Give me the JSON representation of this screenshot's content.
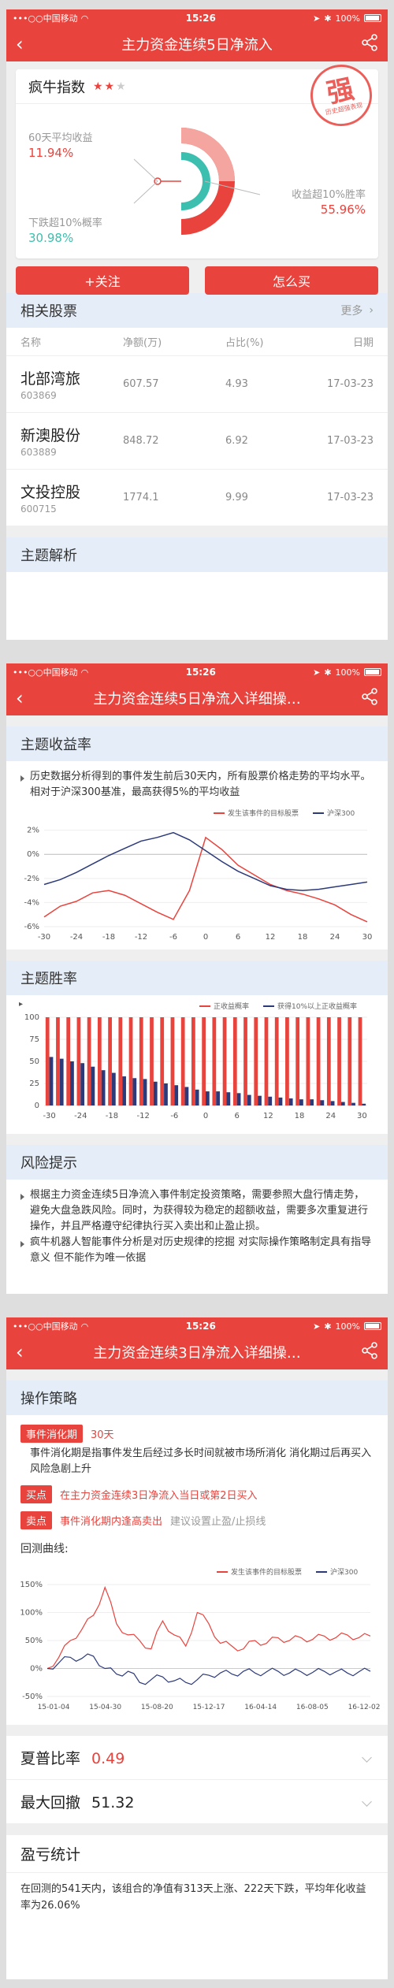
{
  "status_bar": {
    "carrier": "•••○○中国移动",
    "time": "15:26",
    "battery": "100%"
  },
  "frames": [
    {
      "nav_title": "主力资金连续5日净流入"
    },
    {
      "nav_title": "主力资金连续5日净流入详细操…"
    },
    {
      "nav_title": "主力资金连续3日净流入详细操…"
    }
  ],
  "index_card": {
    "name": "疯牛指数",
    "stars_filled": 2,
    "stars_total": 3,
    "avg_return_label": "60天平均收益",
    "avg_return_value": "11.94%",
    "drop_label": "下跌超10%概率",
    "drop_value": "30.98%",
    "win_label": "收益超10%胜率",
    "win_value": "55.96%",
    "stamp_char": "强",
    "stamp_sub": "历史超强表现"
  },
  "actions": {
    "follow": "+关注",
    "how_to_buy": "怎么买"
  },
  "related": {
    "title": "相关股票",
    "more": "更多",
    "columns": [
      "名称",
      "净额(万)",
      "占比(%)",
      "日期"
    ],
    "rows": [
      {
        "name": "北部湾旅",
        "code": "603869",
        "net": "607.57",
        "ratio": "4.93",
        "date": "17-03-23"
      },
      {
        "name": "新澳股份",
        "code": "603889",
        "net": "848.72",
        "ratio": "6.92",
        "date": "17-03-23"
      },
      {
        "name": "文投控股",
        "code": "600715",
        "net": "1774.1",
        "ratio": "9.99",
        "date": "17-03-23"
      }
    ]
  },
  "theme_analysis": {
    "title": "主题解析"
  },
  "theme_return": {
    "title": "主题收益率",
    "text": "历史数据分析得到的事件发生前后30天内，所有股票价格走势的平均水平。相对于沪深300基准，最高获得5%的平均收益"
  },
  "theme_win": {
    "title": "主题胜率"
  },
  "risk": {
    "title": "风险提示",
    "bullets": [
      "根据主力资金连续5日净流入事件制定投资策略，需要参照大盘行情走势，避免大盘急跌风险。同时，为获得较为稳定的超额收益，需要多次重复进行操作，并且严格遵守纪律执行买入卖出和止盈止损。",
      "疯牛机器人智能事件分析是对历史规律的挖掘 对实际操作策略制定具有指导意义 但不能作为唯一依据"
    ]
  },
  "strategy": {
    "title": "操作策略",
    "digest_tag": "事件消化期",
    "digest_value": "30天",
    "digest_desc": "事件消化期是指事件发生后经过多长时间就被市场所消化 消化期过后再买入 风险急剧上升",
    "buy_tag": "买点",
    "buy_text": "在主力资金连续3日净流入当日或第2日买入",
    "sell_tag": "卖点",
    "sell_text": "事件消化期内逢高卖出",
    "sell_hint": "建议设置止盈/止损线",
    "backtest_label": "回测曲线:"
  },
  "sharpe": {
    "label": "夏普比率",
    "value": "0.49"
  },
  "drawdown": {
    "label": "最大回撤",
    "value": "51.32"
  },
  "pnl": {
    "title": "盈亏统计",
    "text": "在回测的541天内，该组合的净值有313天上涨、222天下跌，平均年化收益率为26.06%"
  },
  "chart_data": [
    {
      "type": "line",
      "title": "",
      "xlabel": "",
      "ylabel": "",
      "x": [
        -30,
        -27,
        -24,
        -21,
        -18,
        -15,
        -12,
        -9,
        -6,
        -3,
        0,
        3,
        6,
        9,
        12,
        15,
        18,
        21,
        24,
        27,
        30
      ],
      "xticks": [
        "-30",
        "-24",
        "-18",
        "-12",
        "-6",
        "0",
        "6",
        "12",
        "18",
        "24",
        "30"
      ],
      "yticks": [
        "2%",
        "0%",
        "-2%",
        "-4%",
        "-6%"
      ],
      "ylim": [
        -6,
        2.5
      ],
      "legend_position": "top-right",
      "series": [
        {
          "name": "发生该事件的目标股票",
          "color": "#e8433d",
          "values": [
            -5.2,
            -4.3,
            -3.9,
            -3.2,
            -3.0,
            -3.4,
            -4.1,
            -4.8,
            -5.4,
            -3.0,
            1.4,
            0.4,
            -0.9,
            -1.7,
            -2.5,
            -3.0,
            -3.3,
            -3.7,
            -4.2,
            -5.0,
            -5.6
          ]
        },
        {
          "name": "沪深300",
          "color": "#2c3a7a",
          "values": [
            -2.5,
            -2.1,
            -1.5,
            -0.8,
            -0.1,
            0.5,
            1.1,
            1.4,
            1.8,
            1.2,
            0.3,
            -0.6,
            -1.4,
            -2.0,
            -2.6,
            -2.9,
            -3.0,
            -2.9,
            -2.7,
            -2.5,
            -2.3
          ]
        }
      ]
    },
    {
      "type": "bar",
      "title": "",
      "x": [
        -30,
        -28,
        -26,
        -24,
        -22,
        -20,
        -18,
        -16,
        -14,
        -12,
        -10,
        -8,
        -6,
        -4,
        -2,
        0,
        2,
        4,
        6,
        8,
        10,
        12,
        14,
        16,
        18,
        20,
        22,
        24,
        26,
        28,
        30
      ],
      "xticks": [
        "-30",
        "-24",
        "-18",
        "-12",
        "-6",
        "0",
        "6",
        "12",
        "18",
        "24",
        "30"
      ],
      "yticks": [
        "100",
        "75",
        "50",
        "25",
        "0"
      ],
      "ylim": [
        0,
        100
      ],
      "legend_position": "top-right",
      "series": [
        {
          "name": "正收益概率",
          "color": "#e8433d",
          "values": [
            100,
            100,
            100,
            100,
            100,
            100,
            100,
            100,
            100,
            100,
            100,
            100,
            100,
            100,
            100,
            100,
            100,
            100,
            100,
            100,
            100,
            100,
            100,
            100,
            100,
            100,
            100,
            100,
            100,
            100,
            100
          ]
        },
        {
          "name": "获得10%以上正收益概率",
          "color": "#2c3a7a",
          "values": [
            55,
            53,
            50,
            48,
            44,
            40,
            37,
            33,
            31,
            30,
            27,
            25,
            23,
            21,
            18,
            16,
            16,
            15,
            14,
            12,
            11,
            10,
            9,
            8,
            7,
            7,
            6,
            5,
            4,
            3,
            2
          ]
        }
      ]
    },
    {
      "type": "line",
      "title": "",
      "xticks": [
        "15-01-04",
        "15-04-30",
        "15-08-20",
        "15-12-17",
        "16-04-14",
        "16-08-05",
        "16-12-02"
      ],
      "yticks": [
        "150%",
        "100%",
        "50%",
        "0%",
        "-50%"
      ],
      "ylim": [
        -50,
        150
      ],
      "legend_position": "top-right",
      "series": [
        {
          "name": "发生该事件的目标股票",
          "color": "#e8433d",
          "values": [
            0,
            20,
            50,
            70,
            95,
            145,
            80,
            60,
            50,
            35,
            85,
            60,
            40,
            100,
            80,
            45,
            40,
            35,
            50,
            45,
            55,
            50,
            55,
            52,
            58,
            55,
            60,
            55,
            58
          ]
        },
        {
          "name": "沪深300",
          "color": "#2c3a7a",
          "values": [
            0,
            10,
            20,
            18,
            22,
            0,
            -10,
            -5,
            -25,
            -20,
            -15,
            -22,
            -25,
            -20,
            -12,
            -8,
            -10,
            -5,
            -8,
            -6,
            -5,
            -8,
            -6,
            -7,
            -5,
            -6,
            -8,
            -6,
            -5
          ]
        }
      ]
    }
  ]
}
